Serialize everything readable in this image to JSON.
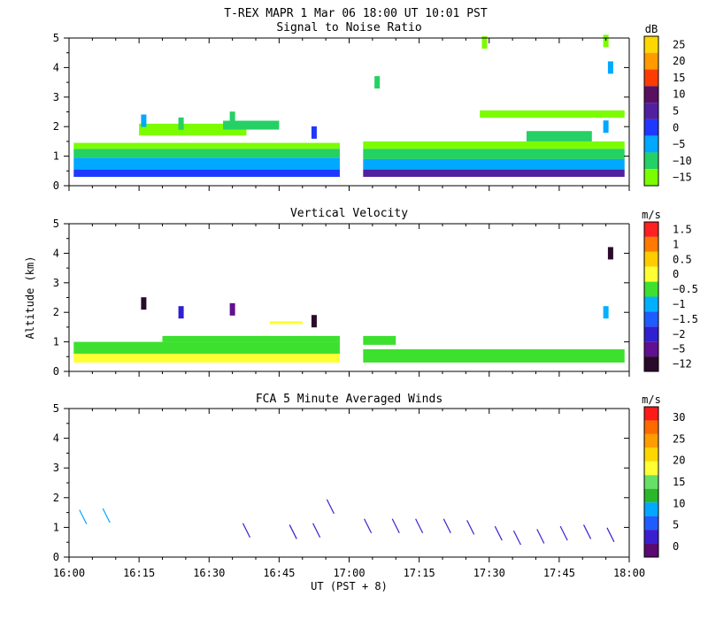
{
  "figure_title": "T-REX   MAPR   1 Mar 06   18:00 UT   10:01   PST",
  "chart_data": [
    {
      "type": "heatmap",
      "title": "Signal to Noise Ratio",
      "xlabel": "UT  (PST + 8)",
      "ylabel": "Altitude (km)",
      "xlim": [
        0,
        120
      ],
      "ylim": [
        0,
        5
      ],
      "x_tick_labels": [
        "16:00",
        "16:15",
        "16:30",
        "16:45",
        "17:00",
        "17:15",
        "17:30",
        "17:45",
        "18:00"
      ],
      "y_ticks": [
        0,
        1,
        2,
        3,
        4,
        5
      ],
      "colorbar": {
        "unit": "dB",
        "labels": [
          "25",
          "20",
          "15",
          "10",
          "5",
          "0",
          "−5",
          "−10",
          "−15"
        ],
        "colors": [
          "#ffd700",
          "#ff9a00",
          "#ff3c00",
          "#5a1060",
          "#5020a0",
          "#1f38ff",
          "#00a8ff",
          "#25d065",
          "#7cfc00"
        ]
      },
      "data_gap_minutes": [
        58,
        63
      ],
      "bands": [
        {
          "t0": 1,
          "t1": 58,
          "alt0": 0.3,
          "alt1": 0.55,
          "level": "0"
        },
        {
          "t0": 1,
          "t1": 58,
          "alt0": 0.55,
          "alt1": 0.95,
          "level": "−5"
        },
        {
          "t0": 1,
          "t1": 58,
          "alt0": 0.95,
          "alt1": 1.25,
          "level": "−10"
        },
        {
          "t0": 1,
          "t1": 58,
          "alt0": 1.25,
          "alt1": 1.45,
          "level": "−15"
        },
        {
          "t0": 63,
          "t1": 119,
          "alt0": 0.3,
          "alt1": 0.55,
          "level": "5"
        },
        {
          "t0": 63,
          "t1": 119,
          "alt0": 0.55,
          "alt1": 0.9,
          "level": "−5"
        },
        {
          "t0": 63,
          "t1": 119,
          "alt0": 0.9,
          "alt1": 1.25,
          "level": "−10"
        },
        {
          "t0": 63,
          "t1": 119,
          "alt0": 1.25,
          "alt1": 1.5,
          "level": "−15"
        },
        {
          "t0": 15,
          "t1": 38,
          "alt0": 1.7,
          "alt1": 2.1,
          "level": "−15"
        },
        {
          "t0": 33,
          "t1": 45,
          "alt0": 1.9,
          "alt1": 2.2,
          "level": "−10"
        },
        {
          "t0": 88,
          "t1": 119,
          "alt0": 2.3,
          "alt1": 2.55,
          "level": "−15"
        },
        {
          "t0": 98,
          "t1": 112,
          "alt0": 1.5,
          "alt1": 1.85,
          "level": "−10"
        }
      ],
      "spots": [
        {
          "t": 16,
          "alt": 2.2,
          "level": "−5"
        },
        {
          "t": 24,
          "alt": 2.1,
          "level": "−10"
        },
        {
          "t": 35,
          "alt": 2.3,
          "level": "−10"
        },
        {
          "t": 52.5,
          "alt": 1.8,
          "level": "0"
        },
        {
          "t": 66,
          "alt": 3.5,
          "level": "−10"
        },
        {
          "t": 89,
          "alt": 4.85,
          "level": "−15"
        },
        {
          "t": 115,
          "alt": 4.9,
          "level": "−15"
        },
        {
          "t": 116,
          "alt": 4.0,
          "level": "−5"
        },
        {
          "t": 115,
          "alt": 2.0,
          "level": "−5"
        }
      ]
    },
    {
      "type": "heatmap",
      "title": "Vertical Velocity",
      "xlabel": "UT  (PST + 8)",
      "ylabel": "Altitude (km)",
      "xlim": [
        0,
        120
      ],
      "ylim": [
        0,
        5
      ],
      "x_tick_labels": [
        "16:00",
        "16:15",
        "16:30",
        "16:45",
        "17:00",
        "17:15",
        "17:30",
        "17:45",
        "18:00"
      ],
      "y_ticks": [
        0,
        1,
        2,
        3,
        4,
        5
      ],
      "colorbar": {
        "unit": "m/s",
        "labels": [
          "1.5",
          "1",
          "0.5",
          "0",
          "−0.5",
          "−1",
          "−1.5",
          "−2",
          "−5",
          "−12"
        ],
        "colors": [
          "#ff2020",
          "#ff7a00",
          "#ffcc00",
          "#ffff33",
          "#3ee02f",
          "#00b0ff",
          "#1f5cff",
          "#3020d0",
          "#601090",
          "#2a0a2a"
        ]
      },
      "data_gap_minutes": [
        58,
        63
      ],
      "bands": [
        {
          "t0": 1,
          "t1": 58,
          "alt0": 0.3,
          "alt1": 0.6,
          "level": "0"
        },
        {
          "t0": 1,
          "t1": 58,
          "alt0": 0.6,
          "alt1": 1.0,
          "level": "−0.5"
        },
        {
          "t0": 20,
          "t1": 58,
          "alt0": 1.0,
          "alt1": 1.2,
          "level": "−0.5"
        },
        {
          "t0": 63,
          "t1": 119,
          "alt0": 0.3,
          "alt1": 0.75,
          "level": "−0.5"
        },
        {
          "t0": 63,
          "t1": 70,
          "alt0": 0.9,
          "alt1": 1.2,
          "level": "−0.5"
        },
        {
          "t0": 43,
          "t1": 50,
          "alt0": 1.6,
          "alt1": 1.7,
          "level": "0"
        }
      ],
      "spots": [
        {
          "t": 16,
          "alt": 2.3,
          "level": "−12"
        },
        {
          "t": 24,
          "alt": 2.0,
          "level": "−2"
        },
        {
          "t": 35,
          "alt": 2.1,
          "level": "−5"
        },
        {
          "t": 52.5,
          "alt": 1.7,
          "level": "−12"
        },
        {
          "t": 116,
          "alt": 4.0,
          "level": "−12"
        },
        {
          "t": 115,
          "alt": 2.0,
          "level": "−1"
        }
      ]
    },
    {
      "type": "barbs",
      "title": "FCA 5 Minute Averaged Winds",
      "xlabel": "UT  (PST + 8)",
      "ylabel": "Altitude (km)",
      "xlim": [
        0,
        120
      ],
      "ylim": [
        0,
        5
      ],
      "x_tick_labels": [
        "16:00",
        "16:15",
        "16:30",
        "16:45",
        "17:00",
        "17:15",
        "17:30",
        "17:45",
        "18:00"
      ],
      "y_ticks": [
        0,
        1,
        2,
        3,
        4,
        5
      ],
      "colorbar": {
        "unit": "m/s",
        "labels": [
          "30",
          "25",
          "20",
          "15",
          "10",
          "5",
          "0"
        ],
        "colors": [
          "#ff1a1a",
          "#ff6a00",
          "#ff9d00",
          "#ffd700",
          "#ffff33",
          "#66e066",
          "#2ab82a",
          "#00a8ff",
          "#1f5cff",
          "#3a1fd0",
          "#5a0a70"
        ]
      },
      "barbs": [
        {
          "t": 3,
          "alt": 1.35,
          "speed": 10
        },
        {
          "t": 8,
          "alt": 1.4,
          "speed": 10
        },
        {
          "t": 38,
          "alt": 0.9,
          "speed": 3
        },
        {
          "t": 48,
          "alt": 0.85,
          "speed": 3
        },
        {
          "t": 53,
          "alt": 0.9,
          "speed": 3
        },
        {
          "t": 56,
          "alt": 1.7,
          "speed": 3
        },
        {
          "t": 64,
          "alt": 1.05,
          "speed": 3
        },
        {
          "t": 70,
          "alt": 1.05,
          "speed": 3
        },
        {
          "t": 75,
          "alt": 1.05,
          "speed": 3
        },
        {
          "t": 81,
          "alt": 1.05,
          "speed": 3
        },
        {
          "t": 86,
          "alt": 1.0,
          "speed": 3
        },
        {
          "t": 92,
          "alt": 0.8,
          "speed": 3
        },
        {
          "t": 96,
          "alt": 0.65,
          "speed": 3
        },
        {
          "t": 101,
          "alt": 0.7,
          "speed": 3
        },
        {
          "t": 106,
          "alt": 0.8,
          "speed": 3
        },
        {
          "t": 111,
          "alt": 0.85,
          "speed": 3
        },
        {
          "t": 116,
          "alt": 0.75,
          "speed": 3
        }
      ]
    }
  ]
}
